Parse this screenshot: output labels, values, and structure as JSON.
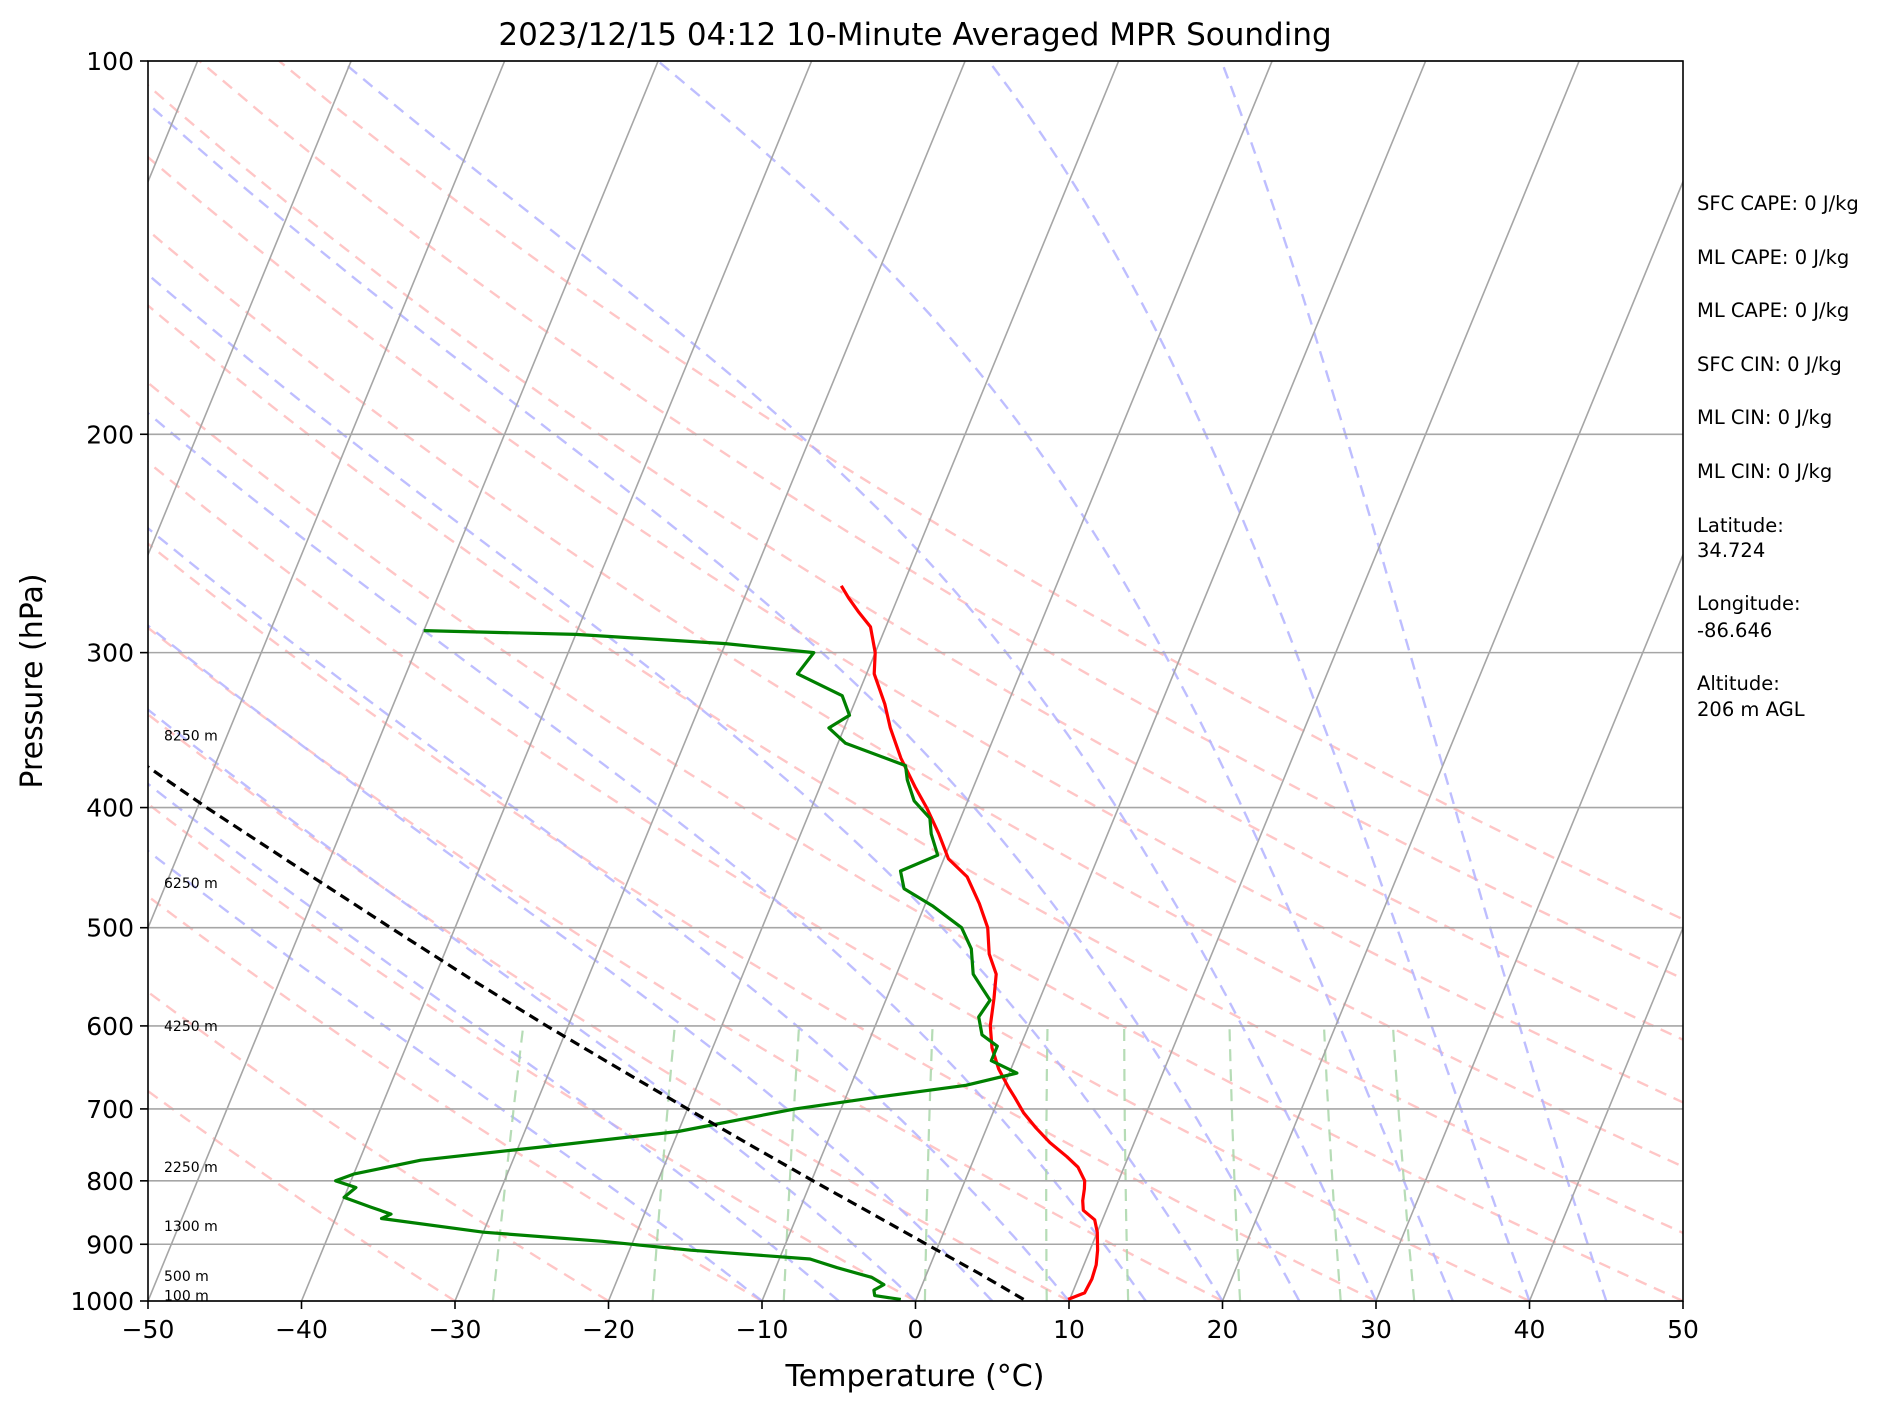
{
  "chart_data": {
    "type": "line",
    "subtype": "skew-T log-P sounding",
    "title": "2023/12/15 04:12 10-Minute Averaged MPR Sounding",
    "xlabel": "Temperature (°C)",
    "ylabel": "Pressure (hPa)",
    "xlim": [
      -50,
      50
    ],
    "ylim": [
      1000,
      100
    ],
    "y_scale": "log",
    "x_ticks": [
      -50,
      -40,
      -30,
      -20,
      -10,
      0,
      10,
      20,
      30,
      40,
      50
    ],
    "x_tick_labels": [
      "−50",
      "−40",
      "−30",
      "−20",
      "−10",
      "0",
      "10",
      "20",
      "30",
      "40",
      "50"
    ],
    "y_ticks": [
      100,
      200,
      300,
      400,
      500,
      600,
      700,
      800,
      900,
      1000
    ],
    "y_tick_labels": [
      "100",
      "200",
      "300",
      "400",
      "500",
      "600",
      "700",
      "800",
      "900",
      "1000"
    ],
    "grid": true,
    "colors": {
      "temperature": "#ff0000",
      "dewpoint": "#008000",
      "parcel": "#000000",
      "isotherms": "#a6a6a6",
      "dry_adiabats": "#ffb3b3",
      "moist_adiabats": "#b3b3ff",
      "mixing_ratio": "#a9d6a9"
    },
    "height_labels": [
      {
        "p": 350,
        "text": "8250 m"
      },
      {
        "p": 460,
        "text": "6250 m"
      },
      {
        "p": 600,
        "text": "4250 m"
      },
      {
        "p": 780,
        "text": "2250 m"
      },
      {
        "p": 870,
        "text": "1300 m"
      },
      {
        "p": 955,
        "text": "500 m"
      },
      {
        "p": 990,
        "text": "100 m"
      }
    ],
    "series": [
      {
        "key": "temperature",
        "points": [
          [
            997,
            9.9
          ],
          [
            985,
            10.8
          ],
          [
            960,
            10.9
          ],
          [
            935,
            10.8
          ],
          [
            910,
            10.5
          ],
          [
            880,
            10.0
          ],
          [
            860,
            9.5
          ],
          [
            845,
            8.5
          ],
          [
            830,
            8.2
          ],
          [
            812,
            8.0
          ],
          [
            800,
            7.8
          ],
          [
            780,
            7.0
          ],
          [
            765,
            6.0
          ],
          [
            745,
            4.5
          ],
          [
            725,
            3.2
          ],
          [
            705,
            2.0
          ],
          [
            685,
            1.0
          ],
          [
            672,
            0.3
          ],
          [
            650,
            -0.8
          ],
          [
            625,
            -1.8
          ],
          [
            600,
            -2.5
          ],
          [
            570,
            -3.0
          ],
          [
            545,
            -3.5
          ],
          [
            525,
            -4.5
          ],
          [
            500,
            -5.3
          ],
          [
            478,
            -6.5
          ],
          [
            455,
            -8.0
          ],
          [
            440,
            -9.7
          ],
          [
            420,
            -11.0
          ],
          [
            400,
            -12.5
          ],
          [
            385,
            -13.8
          ],
          [
            365,
            -15.5
          ],
          [
            345,
            -17.0
          ],
          [
            330,
            -18.0
          ],
          [
            312,
            -19.5
          ],
          [
            300,
            -20.0
          ],
          [
            286,
            -21.0
          ],
          [
            278,
            -22.2
          ],
          [
            271,
            -23.2
          ],
          [
            265,
            -24.0
          ]
        ]
      },
      {
        "key": "dewpoint",
        "points": [
          [
            997,
            -1.0
          ],
          [
            990,
            -2.8
          ],
          [
            980,
            -3.0
          ],
          [
            970,
            -2.5
          ],
          [
            957,
            -3.5
          ],
          [
            940,
            -6.0
          ],
          [
            925,
            -8.0
          ],
          [
            910,
            -16.0
          ],
          [
            895,
            -22.0
          ],
          [
            880,
            -30.0
          ],
          [
            858,
            -37.0
          ],
          [
            851,
            -36.5
          ],
          [
            840,
            -38.0
          ],
          [
            825,
            -40.0
          ],
          [
            810,
            -39.5
          ],
          [
            800,
            -41.0
          ],
          [
            790,
            -40.0
          ],
          [
            770,
            -36.0
          ],
          [
            750,
            -28.0
          ],
          [
            730,
            -20.0
          ],
          [
            700,
            -13.0
          ],
          [
            685,
            -8.0
          ],
          [
            670,
            -2.5
          ],
          [
            655,
            0.5
          ],
          [
            640,
            -1.5
          ],
          [
            623,
            -1.5
          ],
          [
            610,
            -2.8
          ],
          [
            590,
            -3.5
          ],
          [
            572,
            -3.2
          ],
          [
            560,
            -4.0
          ],
          [
            545,
            -5.0
          ],
          [
            520,
            -5.8
          ],
          [
            500,
            -7.0
          ],
          [
            480,
            -9.5
          ],
          [
            465,
            -11.8
          ],
          [
            450,
            -12.5
          ],
          [
            437,
            -10.5
          ],
          [
            420,
            -11.5
          ],
          [
            408,
            -12.0
          ],
          [
            395,
            -13.5
          ],
          [
            380,
            -14.5
          ],
          [
            370,
            -15.0
          ],
          [
            355,
            -19.5
          ],
          [
            345,
            -21.0
          ],
          [
            337,
            -20.0
          ],
          [
            325,
            -21.0
          ],
          [
            312,
            -24.5
          ],
          [
            300,
            -24.0
          ],
          [
            295,
            -30.0
          ],
          [
            290,
            -40.0
          ],
          [
            288,
            -50.0
          ]
        ]
      },
      {
        "key": "parcel",
        "points": [
          [
            997,
            7.0
          ],
          [
            950,
            3.4
          ],
          [
            900,
            -0.8
          ],
          [
            850,
            -5.2
          ],
          [
            800,
            -9.9
          ],
          [
            750,
            -14.8
          ],
          [
            700,
            -20.0
          ],
          [
            650,
            -25.5
          ],
          [
            600,
            -31.4
          ],
          [
            550,
            -37.6
          ],
          [
            500,
            -44.2
          ],
          [
            450,
            -51.4
          ],
          [
            400,
            -59.4
          ],
          [
            350,
            -68.1
          ],
          [
            300,
            -77.6
          ],
          [
            265,
            -84.8
          ]
        ]
      }
    ],
    "indices": [
      "SFC CAPE: 0 J/kg",
      "ML CAPE: 0 J/kg",
      "ML CAPE: 0 J/kg",
      "SFC CIN: 0 J/kg",
      "ML CIN: 0 J/kg",
      "ML CIN: 0 J/kg"
    ],
    "station": {
      "latitude_label": "Latitude:",
      "latitude": "34.724",
      "longitude_label": "Longitude:",
      "longitude": "-86.646",
      "altitude_label": "Altitude:",
      "altitude": "206 m AGL"
    }
  }
}
